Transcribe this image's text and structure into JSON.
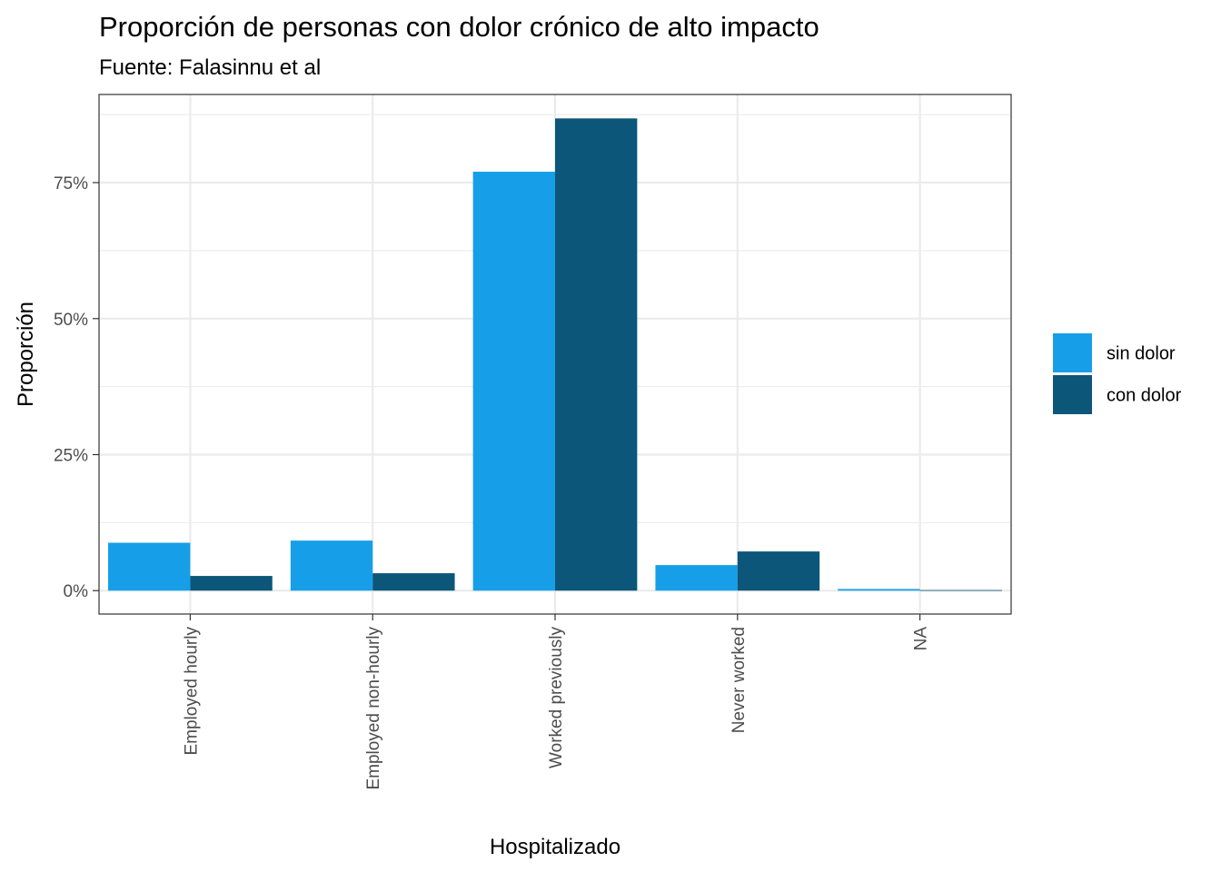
{
  "chart_data": {
    "type": "bar",
    "title": "Proporción de personas con dolor crónico de alto impacto",
    "subtitle": "Fuente: Falasinnu et al",
    "xlabel": "Hospitalizado",
    "ylabel": "Proporción",
    "categories": [
      "Employed hourly",
      "Employed non-hourly",
      "Worked previously",
      "Never worked",
      "NA"
    ],
    "series": [
      {
        "name": "sin dolor",
        "color": "#169fe8",
        "values": [
          8.8,
          9.2,
          77.0,
          4.7,
          0.3
        ]
      },
      {
        "name": "con dolor",
        "color": "#0c5679",
        "values": [
          2.7,
          3.2,
          86.8,
          7.2,
          0.1
        ]
      }
    ],
    "ylim": [
      -4.3,
      91.2
    ],
    "yticks": [
      0,
      25,
      50,
      75
    ],
    "ytick_labels": [
      "0%",
      "25%",
      "50%",
      "75%"
    ],
    "grid": true,
    "legend_position": "right"
  }
}
